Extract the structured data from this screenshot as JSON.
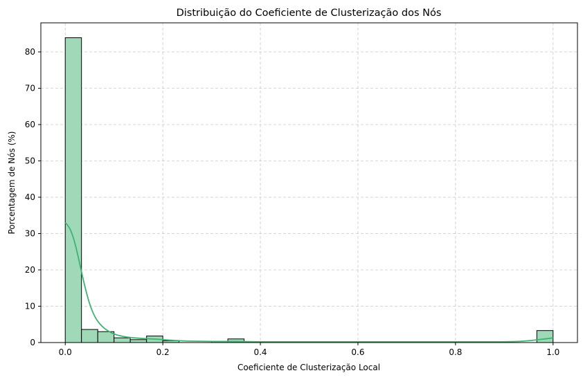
{
  "chart_data": {
    "type": "bar",
    "title": "Distribuição do Coeficiente de Clusterização dos Nós",
    "xlabel": "Coeficiente de Clusterização Local",
    "ylabel": "Porcentagem de Nós (%)",
    "xlim": [
      -0.05,
      1.05
    ],
    "ylim": [
      0,
      88
    ],
    "xticks": [
      0.0,
      0.2,
      0.4,
      0.6,
      0.8,
      1.0
    ],
    "xtick_labels": [
      "0.0",
      "0.2",
      "0.4",
      "0.6",
      "0.8",
      "1.0"
    ],
    "yticks": [
      0,
      10,
      20,
      30,
      40,
      50,
      60,
      70,
      80
    ],
    "ytick_labels": [
      "0",
      "10",
      "20",
      "30",
      "40",
      "50",
      "60",
      "70",
      "80"
    ],
    "grid": true,
    "bar_color": "#9fd9b8",
    "kde_color": "#3cb371",
    "bins": [
      {
        "x0": 0.0,
        "x1": 0.0333,
        "value": 83.9
      },
      {
        "x0": 0.0333,
        "x1": 0.0667,
        "value": 3.6
      },
      {
        "x0": 0.0667,
        "x1": 0.1,
        "value": 3.0
      },
      {
        "x0": 0.1,
        "x1": 0.1333,
        "value": 1.3
      },
      {
        "x0": 0.1333,
        "x1": 0.1667,
        "value": 0.8
      },
      {
        "x0": 0.1667,
        "x1": 0.2,
        "value": 1.8
      },
      {
        "x0": 0.2,
        "x1": 0.2333,
        "value": 0.5
      },
      {
        "x0": 0.2333,
        "x1": 0.2667,
        "value": 0.0
      },
      {
        "x0": 0.2667,
        "x1": 0.3,
        "value": 0.0
      },
      {
        "x0": 0.3,
        "x1": 0.3333,
        "value": 0.3
      },
      {
        "x0": 0.3333,
        "x1": 0.3667,
        "value": 1.0
      },
      {
        "x0": 0.9667,
        "x1": 1.0,
        "value": 3.3
      }
    ],
    "kde": {
      "x": [
        0.0,
        0.01,
        0.02,
        0.03,
        0.04,
        0.05,
        0.06,
        0.07,
        0.08,
        0.09,
        0.1,
        0.12,
        0.14,
        0.16,
        0.18,
        0.2,
        0.22,
        0.25,
        0.3,
        0.35,
        0.4,
        0.5,
        0.6,
        0.7,
        0.8,
        0.9,
        0.93,
        0.95,
        0.97,
        0.99,
        1.0
      ],
      "y": [
        33.0,
        31.5,
        27.5,
        21.5,
        15.5,
        10.5,
        7.2,
        5.2,
        3.9,
        3.0,
        2.3,
        1.6,
        1.3,
        1.1,
        1.0,
        0.8,
        0.6,
        0.4,
        0.3,
        0.3,
        0.2,
        0.2,
        0.2,
        0.2,
        0.2,
        0.2,
        0.3,
        0.5,
        0.8,
        1.1,
        1.3
      ]
    }
  }
}
